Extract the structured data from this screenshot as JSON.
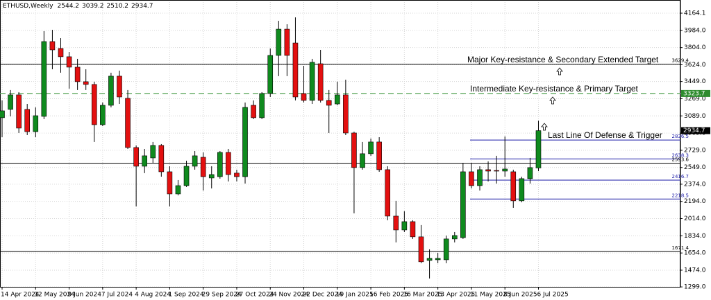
{
  "chart_data": {
    "type": "candlestick",
    "title": "ETHUSD,Weekly",
    "categories": [
      "14 Apr 2024",
      null,
      null,
      null,
      "12 May 2024",
      null,
      null,
      null,
      "9 Jun 2024",
      null,
      null,
      null,
      "7 Jul 2024",
      null,
      null,
      null,
      "4 Aug 2024",
      null,
      null,
      null,
      "1 Sep 2024",
      null,
      null,
      null,
      "29 Sep 2024",
      null,
      null,
      null,
      "27 Oct 2024",
      null,
      null,
      null,
      "24 Nov 2024",
      null,
      null,
      null,
      "22 Dec 2024",
      null,
      null,
      null,
      "19 Jan 2025",
      null,
      null,
      null,
      "16 Feb 2025",
      null,
      null,
      null,
      "16 Mar 2025",
      null,
      null,
      null,
      "13 Apr 2025",
      null,
      null,
      null,
      "11 May 2025",
      null,
      null,
      null,
      "8 Jun 2025",
      null,
      null,
      null,
      "6 Jul 2025"
    ],
    "open": [
      3070,
      3157,
      3309,
      3157,
      2924,
      3084,
      3867,
      3795,
      3708,
      3599,
      3447,
      3418,
      2997,
      3200,
      3505,
      3273,
      2758,
      2562,
      2649,
      2780,
      2504,
      2272,
      2359,
      2562,
      2656,
      2439,
      2453,
      2707,
      2490,
      2453,
      3200,
      3070,
      3323,
      3722,
      3997,
      3852,
      3323,
      3251,
      3635,
      3251,
      3214,
      3309,
      2910,
      2548,
      2693,
      2816,
      2526,
      2040,
      1895,
      1982,
      1823,
      1576,
      1583,
      1583,
      1801,
      1815,
      2504,
      2359,
      2526,
      2518,
      2511,
      2504,
      2200,
      2432,
      2544.2
    ],
    "high": [
      3251,
      3360,
      3338,
      3214,
      3178,
      3976,
      3990,
      3903,
      3758,
      3686,
      3577,
      3447,
      3229,
      3541,
      3563,
      3360,
      2780,
      2743,
      2816,
      2794,
      2562,
      2417,
      2620,
      2721,
      2707,
      2562,
      2721,
      2743,
      2526,
      3229,
      3251,
      3338,
      3794,
      4084,
      4048,
      4120,
      3613,
      3686,
      3780,
      3360,
      3447,
      3468,
      2924,
      2816,
      2852,
      2866,
      2562,
      2200,
      2091,
      1997,
      1946,
      1692,
      1656,
      1837,
      1873,
      2598,
      2598,
      2562,
      2613,
      2671,
      2874,
      2526,
      2453,
      2649,
      3039.2
    ],
    "low": [
      2866,
      3084,
      2910,
      2888,
      2866,
      3055,
      3577,
      3541,
      3374,
      3360,
      3360,
      2816,
      2982,
      3178,
      3214,
      2743,
      2141,
      2490,
      2598,
      2453,
      2141,
      2257,
      2345,
      2526,
      2308,
      2330,
      2432,
      2403,
      2403,
      2381,
      3055,
      3055,
      3287,
      3505,
      3505,
      3251,
      3229,
      3214,
      3229,
      2910,
      3200,
      2888,
      2069,
      2526,
      2671,
      2504,
      1997,
      1765,
      1873,
      1801,
      1547,
      1387,
      1547,
      1547,
      1765,
      1801,
      2330,
      2308,
      2403,
      2381,
      2453,
      2127,
      2185,
      2381,
      2510.2
    ],
    "close": [
      3142,
      3309,
      2961,
      2924,
      3091,
      3867,
      3780,
      3708,
      3599,
      3447,
      3418,
      2997,
      3200,
      3505,
      3287,
      2758,
      2562,
      2671,
      2780,
      2504,
      2272,
      2359,
      2562,
      2671,
      2453,
      2475,
      2707,
      2475,
      2453,
      3178,
      3070,
      3323,
      3722,
      3997,
      3722,
      3287,
      3251,
      3650,
      3251,
      3200,
      3309,
      2910,
      2548,
      2693,
      2816,
      2526,
      2040,
      1895,
      1982,
      1823,
      1562,
      1598,
      1598,
      1801,
      1837,
      2504,
      2359,
      2526,
      2511,
      2511,
      2533,
      2200,
      2432,
      2548,
      2934.7
    ],
    "up_color": "#0f8a1e",
    "down_color": "#e31010",
    "ylim": [
      1292.5,
      4302
    ],
    "yticks": [
      4164.1,
      {
        "value": 3984,
        "label": "3984.0"
      },
      {
        "value": 3804,
        "label": "3804.0"
      },
      {
        "value": 3624,
        "label": "3624.0"
      },
      {
        "value": 3449,
        "label": "3449.0"
      },
      {
        "value": 3269,
        "label": "3269.0"
      },
      {
        "value": 3089,
        "label": "3089.0"
      },
      {
        "value": 2909,
        "label": "2909.0"
      },
      {
        "value": 2729,
        "label": "2729.0"
      },
      {
        "value": 2549,
        "label": "2549.0"
      },
      {
        "value": 2374,
        "label": "2374.0"
      },
      {
        "value": 2194,
        "label": "2194.0"
      },
      {
        "value": 2014,
        "label": "2014.0"
      },
      {
        "value": 1834,
        "label": "1834.0"
      },
      {
        "value": 1654,
        "label": "1654.0"
      },
      {
        "value": 1474,
        "label": "1474.0"
      },
      {
        "value": 1299,
        "label": "1299.0"
      }
    ],
    "grid": true,
    "levels": [
      {
        "value": 3629.4,
        "color": "#000000",
        "dash": false
      },
      {
        "value": 3323.7,
        "color": "#5fa85f",
        "dash": true
      },
      {
        "value": 2836.5,
        "color": "#1a1aa6",
        "dash": false
      },
      {
        "value": 2638.3,
        "color": "#1a1aa6",
        "dash": false
      },
      {
        "value": 2593.6,
        "color": "#000000",
        "dash": false
      },
      {
        "value": 2416.7,
        "color": "#1a1aa6",
        "dash": false
      },
      {
        "value": 2218.5,
        "color": "#1a1aa6",
        "dash": false
      },
      {
        "value": 1671.4,
        "color": "#000000",
        "dash": false
      }
    ],
    "annotations": [
      "Major Key-resistance & Secondary Extended Target",
      "Intermediate Key-resistance & Primary Target",
      "Last Line Of Defense & Trigger"
    ]
  }
}
